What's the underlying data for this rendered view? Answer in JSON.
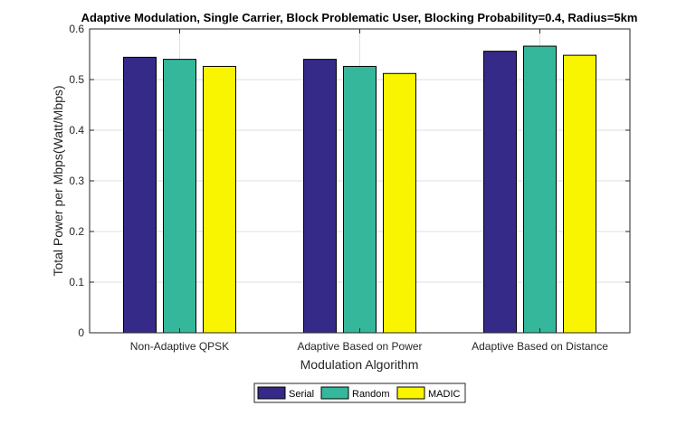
{
  "chart_data": {
    "type": "bar",
    "title": "Adaptive Modulation, Single Carrier, Block Problematic User, Blocking Probability=0.4, Radius=5km",
    "xlabel": "Modulation Algorithm",
    "ylabel": "Total Power per Mbps(Watt/Mbps)",
    "categories": [
      "Non-Adaptive QPSK",
      "Adaptive Based on Power",
      "Adaptive Based on Distance"
    ],
    "ylim": [
      0,
      0.6
    ],
    "yticks": [
      0,
      0.1,
      0.2,
      0.3,
      0.4,
      0.5,
      0.6
    ],
    "ytick_labels": [
      "0",
      "0.1",
      "0.2",
      "0.3",
      "0.4",
      "0.5",
      "0.6"
    ],
    "grid": true,
    "legend_placement": "bottom-center",
    "series": [
      {
        "name": "Serial",
        "color": "#352a87",
        "values": [
          0.544,
          0.54,
          0.556
        ]
      },
      {
        "name": "Random",
        "color": "#35b79b",
        "values": [
          0.54,
          0.526,
          0.566
        ]
      },
      {
        "name": "MADIC",
        "color": "#f9f500",
        "values": [
          0.526,
          0.512,
          0.548
        ]
      }
    ]
  }
}
